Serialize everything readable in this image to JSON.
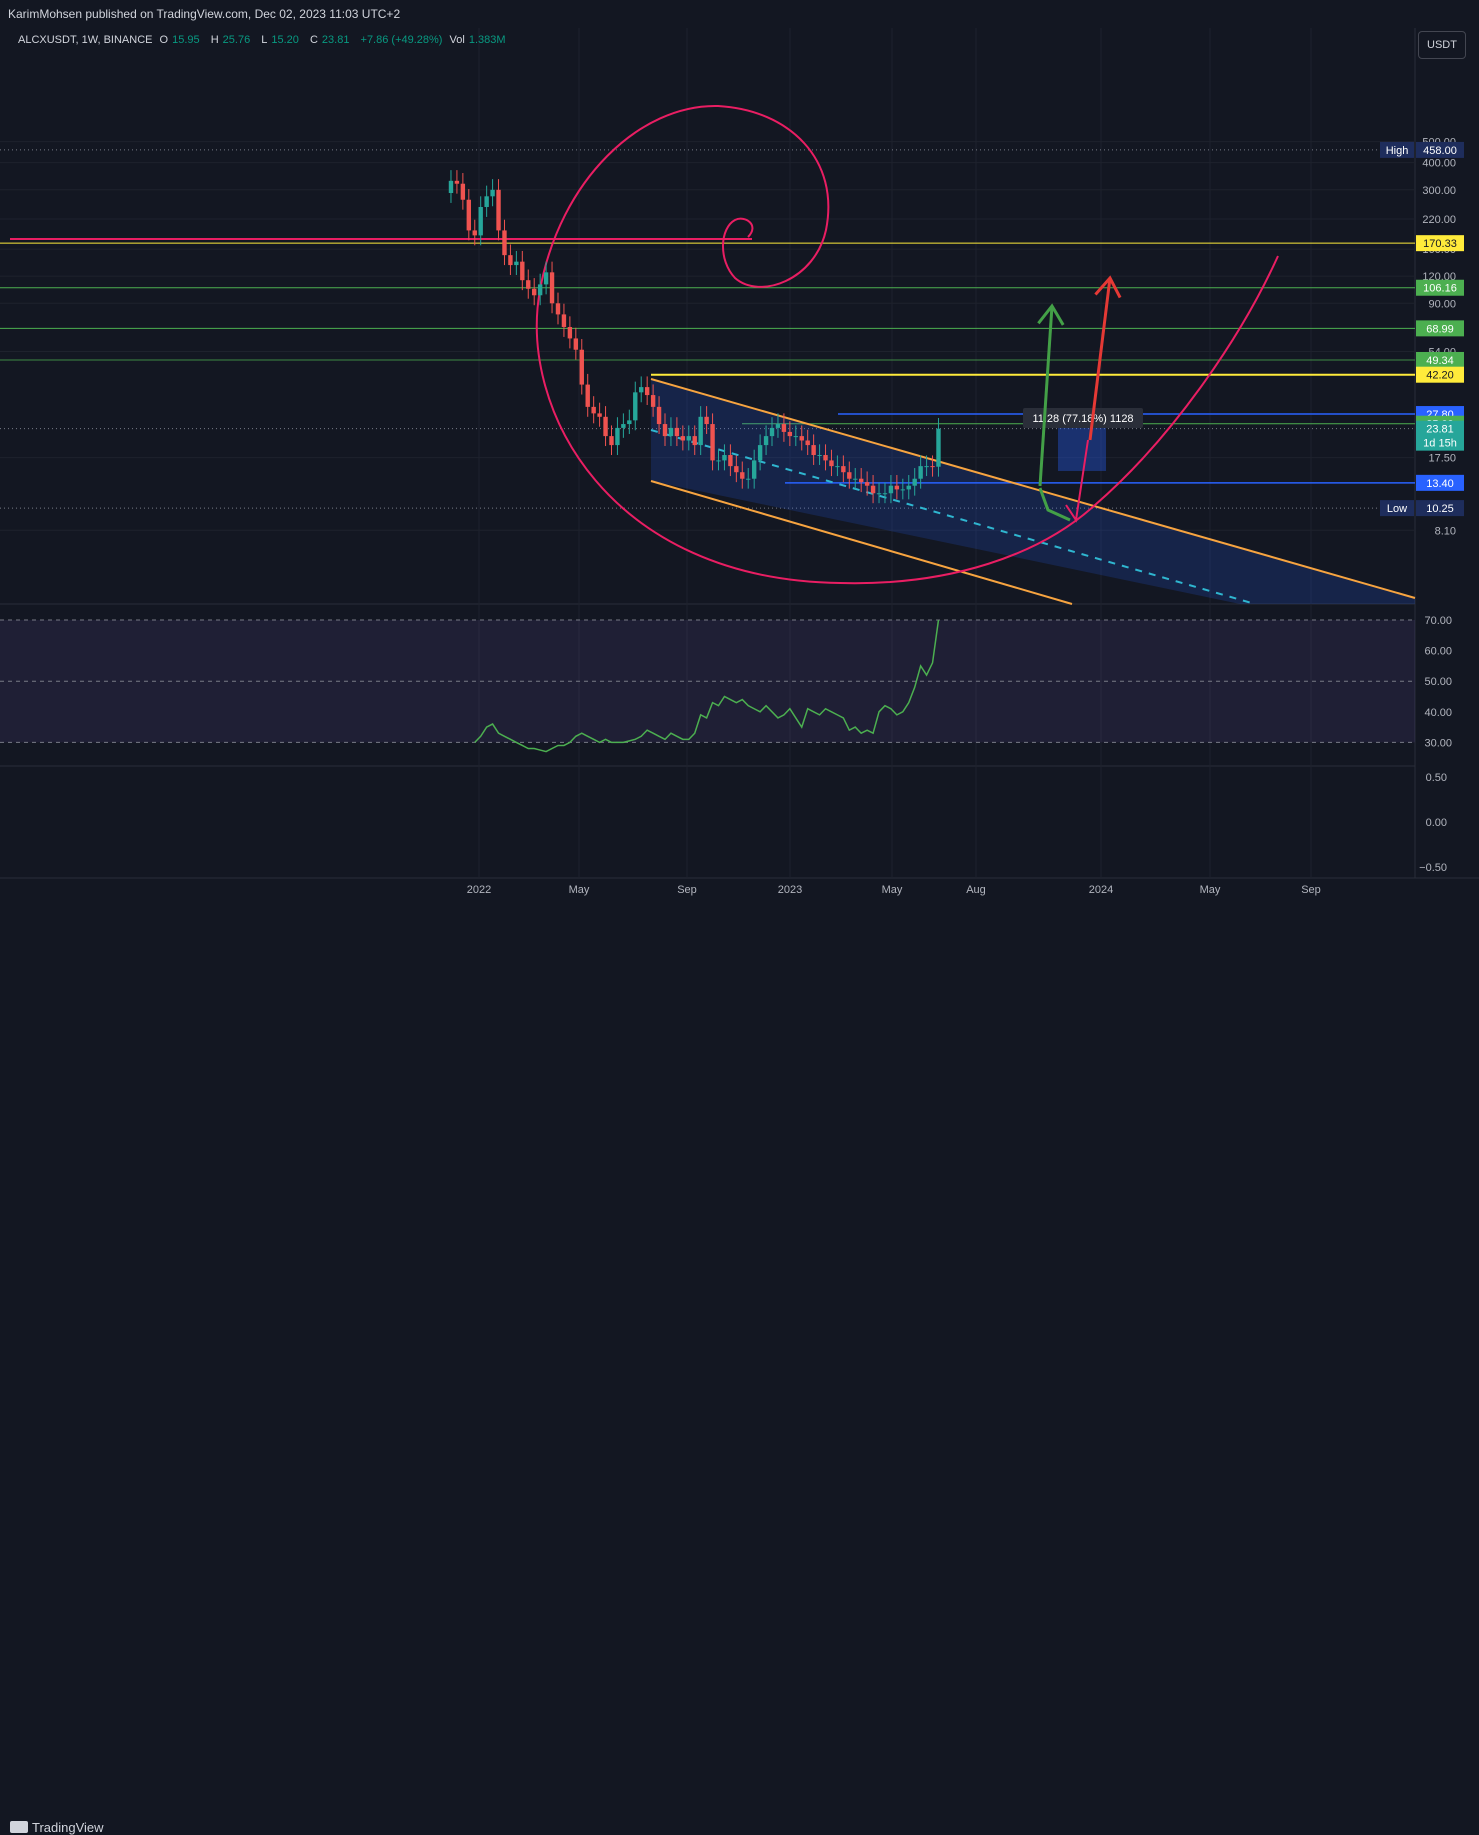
{
  "publisher": "KarimMohsen published on TradingView.com, Dec 02, 2023 11:03 UTC+2",
  "legend": {
    "symbol": "ALCXUSDT, 1W, BINANCE",
    "open_k": "O",
    "open_v": "15.95",
    "high_k": "H",
    "high_v": "25.76",
    "low_k": "L",
    "low_v": "15.20",
    "close_k": "C",
    "close_v": "23.81",
    "change": "+7.86 (+49.28%)",
    "vol_k": "Vol",
    "vol_v": "1.383M"
  },
  "currency_button": "USDT",
  "brand": "TradingView",
  "colors": {
    "background": "#131722",
    "up": "#26a69a",
    "down": "#ef5350",
    "channel": "#f7a440",
    "spiral": "#e91e63",
    "yellow": "#ffeb3b",
    "green": "#4caf50",
    "blue": "#2962ff",
    "rsi": "#4caf50"
  },
  "chart_data": [
    {
      "type": "line",
      "title": "",
      "scale": "log",
      "x_ticks": [
        "2022",
        "May",
        "Sep",
        "2023",
        "May",
        "Aug",
        "2024",
        "May",
        "Sep"
      ],
      "y_ticks": [
        "500.00",
        "400.00",
        "300.00",
        "220.00",
        "160.00",
        "120.00",
        "90.00",
        "54.00",
        "17.50",
        "8.10"
      ],
      "price_series": {
        "start": "2021-11-29",
        "step_days": 7,
        "close": [
          330,
          320,
          270,
          195,
          185,
          250,
          280,
          300,
          195,
          150,
          135,
          140,
          115,
          105,
          98,
          110,
          125,
          90,
          80,
          70,
          62,
          55,
          38,
          30,
          28,
          27,
          22,
          20,
          24,
          25,
          26,
          35,
          37,
          34,
          30,
          25,
          22,
          24,
          22,
          21,
          22,
          20,
          27,
          25,
          17,
          17,
          18,
          16,
          15,
          14,
          14,
          17,
          20,
          22,
          24,
          25,
          23,
          22,
          22,
          21,
          20,
          18,
          18,
          17,
          16,
          16,
          15,
          14,
          14,
          13.5,
          13,
          12,
          12,
          12,
          13,
          12.5,
          12.5,
          13,
          14,
          16,
          16,
          15.9,
          23.81
        ]
      },
      "price_labels": [
        {
          "text": "High",
          "value": "458.00",
          "color": "#1e2d5c",
          "numeric": 458
        },
        {
          "text": "",
          "value": "170.33",
          "color": "#ffeb3b",
          "numeric": 170.33
        },
        {
          "text": "",
          "value": "106.16",
          "color": "#4caf50",
          "numeric": 106.16
        },
        {
          "text": "",
          "value": "68.99",
          "color": "#4caf50",
          "numeric": 68.99
        },
        {
          "text": "",
          "value": "49.34",
          "color": "#4caf50",
          "numeric": 49.34
        },
        {
          "text": "",
          "value": "42.20",
          "color": "#ffeb3b",
          "numeric": 42.2
        },
        {
          "text": "",
          "value": "27.80",
          "color": "#2962ff",
          "numeric": 27.8
        },
        {
          "text": "",
          "value": "25.09",
          "color": "#4caf50",
          "numeric": 25.09
        },
        {
          "text": "",
          "value": "23.81",
          "sub": "1d 15h",
          "color": "#26a69a",
          "numeric": 23.81
        },
        {
          "text": "",
          "value": "13.40",
          "color": "#2962ff",
          "numeric": 13.4
        },
        {
          "text": "Low",
          "value": "10.25",
          "color": "#1e2d5c",
          "numeric": 10.25
        }
      ],
      "measure_label": "11.28 (77.18%) 1128"
    },
    {
      "type": "line",
      "title": "",
      "y_ticks": [
        "70.00",
        "60.00",
        "50.00",
        "40.00",
        "30.00"
      ],
      "ylim": [
        25,
        75
      ],
      "series": [
        {
          "values": [
            30,
            32,
            35,
            36,
            33,
            32,
            31,
            30,
            29,
            28,
            28,
            27.5,
            27,
            28,
            29,
            29,
            30,
            32,
            33,
            32,
            31,
            30,
            31,
            30,
            30,
            30,
            30.5,
            31,
            32,
            34,
            33,
            32,
            31,
            33,
            32,
            31,
            31,
            33,
            39,
            38,
            43,
            42,
            45,
            44,
            43,
            44,
            42,
            41,
            40,
            42,
            40,
            38,
            39,
            41,
            38,
            35,
            41,
            40,
            39,
            41,
            40,
            39,
            38,
            34,
            35,
            33,
            34,
            33,
            40,
            42,
            41,
            39,
            40,
            43,
            48,
            55,
            52,
            56,
            72
          ]
        }
      ]
    },
    {
      "type": "line",
      "title": "",
      "y_ticks": [
        "0.50",
        "0.00",
        "−0.50"
      ],
      "series": []
    }
  ]
}
